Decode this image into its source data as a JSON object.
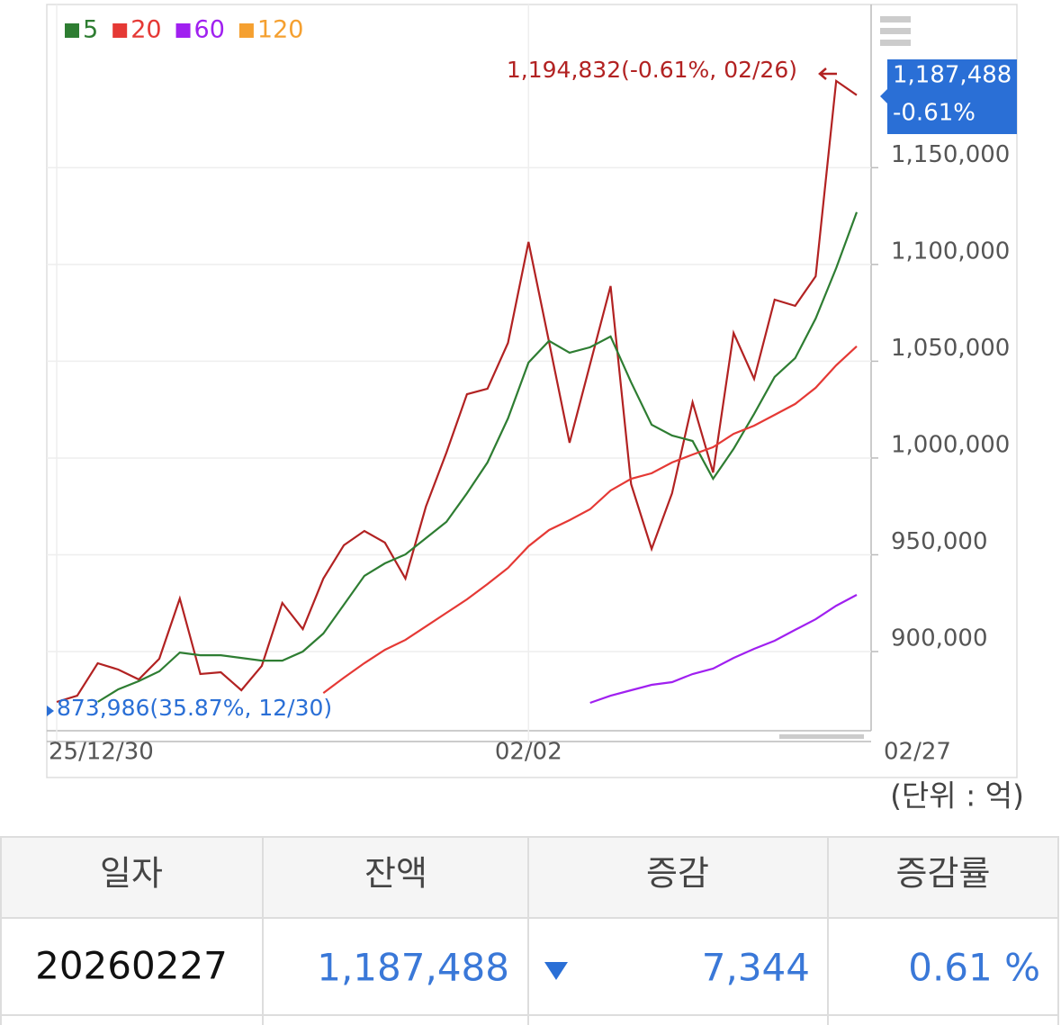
{
  "chart_data": {
    "type": "line",
    "categories": [
      "25/12/30",
      null,
      null,
      null,
      null,
      null,
      null,
      null,
      null,
      null,
      null,
      null,
      null,
      null,
      null,
      null,
      null,
      null,
      null,
      null,
      null,
      null,
      null,
      "02/02",
      null,
      null,
      null,
      null,
      null,
      null,
      null,
      null,
      null,
      null,
      null,
      null,
      null,
      null,
      null,
      "02/27"
    ],
    "series": [
      {
        "color": "#b22222",
        "values": [
          873986,
          877200,
          893950,
          890700,
          885600,
          896300,
          927400,
          888400,
          889300,
          880000,
          892600,
          925100,
          911600,
          937700,
          954900,
          962300,
          956300,
          937700,
          974900,
          1002800,
          1033000,
          1035800,
          1059500,
          1111600,
          1060000,
          1007900,
          1048400,
          1088800,
          986500,
          953000,
          981800,
          1028800,
          992500,
          1064600,
          1040900,
          1081800,
          1078600,
          1093900,
          1194832,
          1187488
        ]
      },
      {
        "name": "5",
        "color": "#2e7d32",
        "values": [
          null,
          null,
          874000,
          880500,
          884700,
          889800,
          899500,
          898100,
          898100,
          896700,
          895300,
          895300,
          900000,
          909300,
          924200,
          939100,
          945600,
          950200,
          958600,
          967000,
          981800,
          997700,
          1020500,
          1049300,
          1060500,
          1054400,
          1057200,
          1062800,
          1039100,
          1017200,
          1011600,
          1008800,
          989300,
          1004700,
          1022800,
          1041900,
          1051600,
          1072100,
          1098100,
          1127000
        ]
      },
      {
        "name": "20",
        "color": "#e53935",
        "values": [
          null,
          null,
          null,
          null,
          null,
          null,
          null,
          null,
          null,
          null,
          null,
          null,
          null,
          878600,
          886500,
          894000,
          900900,
          906000,
          913000,
          920000,
          927000,
          934900,
          943200,
          954400,
          962800,
          967900,
          973500,
          983200,
          989300,
          992100,
          997700,
          1001800,
          1005600,
          1012500,
          1016700,
          1022300,
          1027900,
          1036300,
          1047900,
          1057700
        ]
      },
      {
        "name": "60",
        "color": "#a020f0",
        "values": [
          null,
          null,
          null,
          null,
          null,
          null,
          null,
          null,
          null,
          null,
          null,
          null,
          null,
          null,
          null,
          null,
          null,
          null,
          null,
          null,
          null,
          null,
          null,
          null,
          null,
          null,
          873500,
          877200,
          880000,
          882800,
          884200,
          888400,
          891200,
          896700,
          901400,
          905600,
          911200,
          916700,
          923700,
          929300
        ]
      },
      {
        "name": "120",
        "color": "#f5a030",
        "values": [
          null,
          null,
          null,
          null,
          null,
          null,
          null,
          null,
          null,
          null,
          null,
          null,
          null,
          null,
          null,
          null,
          null,
          null,
          null,
          null,
          null,
          null,
          null,
          null,
          null,
          null,
          null,
          null,
          null,
          null,
          null,
          null,
          null,
          null,
          null,
          null,
          null,
          null,
          null,
          null
        ]
      }
    ],
    "ylim": [
      859100,
      1234300
    ],
    "yticks": [
      {
        "value": 900000,
        "label": "900,000"
      },
      {
        "value": 950000,
        "label": "950,000"
      },
      {
        "value": 1000000,
        "label": "1,000,000"
      },
      {
        "value": 1050000,
        "label": "1,050,000"
      },
      {
        "value": 1100000,
        "label": "1,100,000"
      },
      {
        "value": 1150000,
        "label": "1,150,000"
      }
    ],
    "grid": true,
    "annotations": [
      "1,194,832(-0.61%, 02/26)",
      "873,986(35.87%, 12/30)"
    ],
    "current_tag": [
      "1,187,488",
      "-0.61%"
    ]
  },
  "unit_note": "(단위 : 억)",
  "table": {
    "headers": [
      "일자",
      "잔액",
      "증감",
      "증감률"
    ],
    "rows": [
      [
        "20260227",
        "1,187,488",
        "7,344",
        "0.61 %"
      ]
    ]
  }
}
